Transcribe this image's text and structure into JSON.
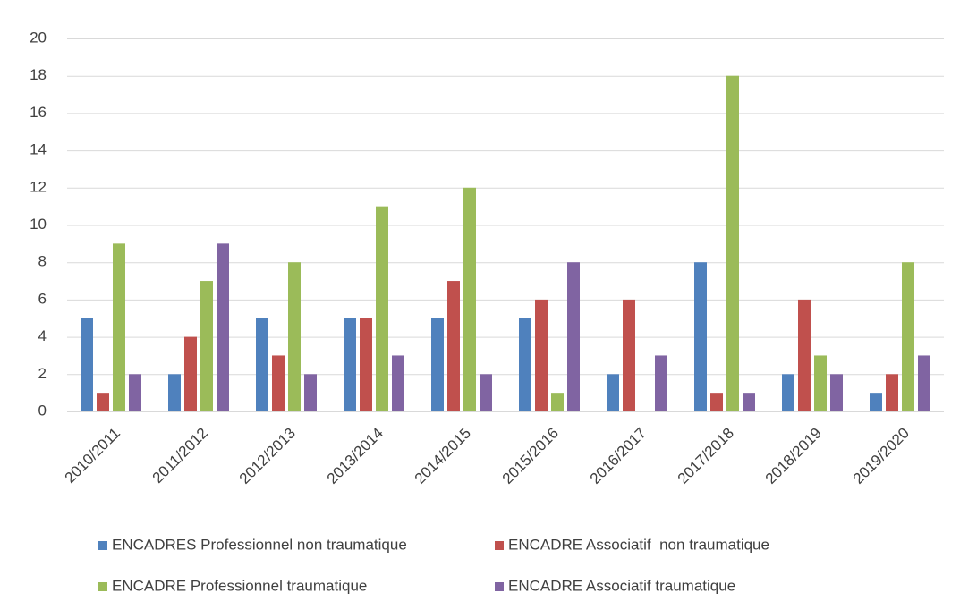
{
  "chart_data": {
    "type": "bar",
    "categories": [
      "2010/2011",
      "2011/2012",
      "2012/2013",
      "2013/2014",
      "2014/2015",
      "2015/2016",
      "2016/2017",
      "2017/2018",
      "2018/2019",
      "2019/2020"
    ],
    "series": [
      {
        "name": "ENCADRES Professionnel non traumatique",
        "color": "#4f81bd",
        "values": [
          5,
          2,
          5,
          5,
          5,
          5,
          2,
          8,
          2,
          1
        ]
      },
      {
        "name": "ENCADRE Associatif  non traumatique",
        "color": "#c0504d",
        "values": [
          1,
          4,
          3,
          5,
          7,
          6,
          6,
          1,
          6,
          2
        ]
      },
      {
        "name": "ENCADRE Professionnel traumatique",
        "color": "#9bbb59",
        "values": [
          9,
          7,
          8,
          11,
          12,
          1,
          0,
          18,
          3,
          8
        ]
      },
      {
        "name": "ENCADRE Associatif traumatique",
        "color": "#8064a2",
        "values": [
          2,
          9,
          2,
          3,
          2,
          8,
          3,
          1,
          2,
          3
        ]
      }
    ],
    "ylim": [
      0,
      20
    ],
    "yticks": [
      0,
      2,
      4,
      6,
      8,
      10,
      12,
      14,
      16,
      18,
      20
    ],
    "grid": true,
    "legend": "bottom"
  }
}
